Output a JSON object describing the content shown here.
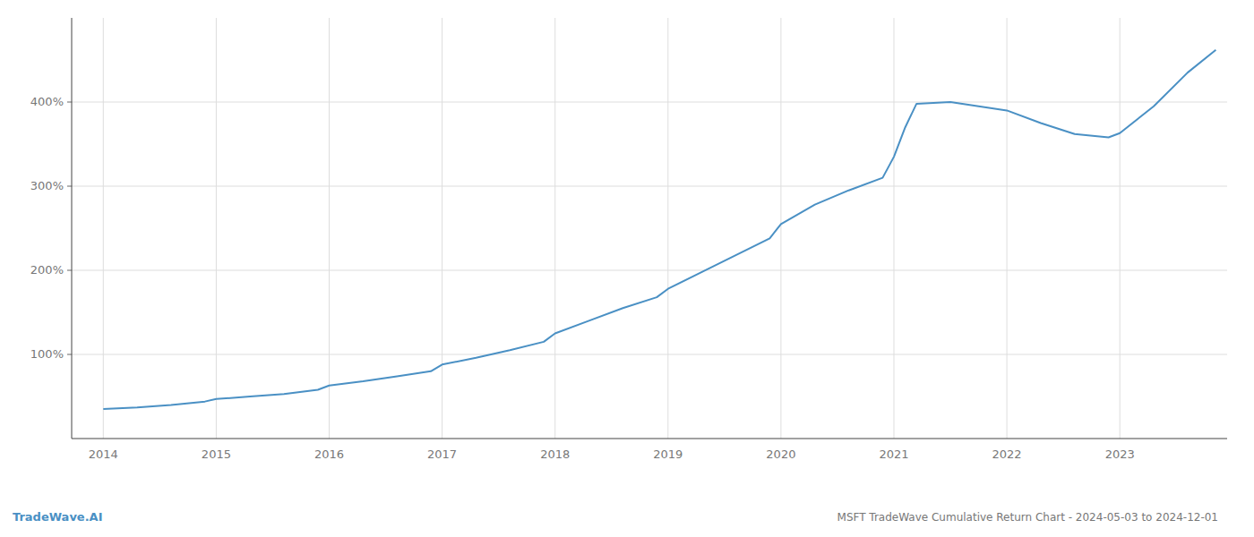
{
  "chart_data": {
    "type": "line",
    "title": "MSFT TradeWave Cumulative Return Chart - 2024-05-03 to 2024-12-01",
    "annotations": [
      "TradeWave.AI"
    ],
    "x": [
      2014.0,
      2014.3,
      2014.6,
      2014.9,
      2015.0,
      2015.3,
      2015.6,
      2015.9,
      2016.0,
      2016.3,
      2016.6,
      2016.9,
      2017.0,
      2017.3,
      2017.6,
      2017.9,
      2018.0,
      2018.3,
      2018.6,
      2018.9,
      2019.0,
      2019.3,
      2019.6,
      2019.9,
      2020.0,
      2020.3,
      2020.6,
      2020.9,
      2021.0,
      2021.1,
      2021.2,
      2021.5,
      2022.0,
      2022.3,
      2022.6,
      2022.9,
      2023.0,
      2023.3,
      2023.6,
      2023.85
    ],
    "values": [
      35,
      37,
      40,
      44,
      47,
      50,
      53,
      58,
      63,
      68,
      74,
      80,
      88,
      96,
      105,
      115,
      125,
      140,
      155,
      168,
      178,
      198,
      218,
      238,
      255,
      278,
      295,
      310,
      335,
      370,
      398,
      400,
      390,
      375,
      362,
      358,
      363,
      395,
      435,
      462
    ],
    "color": "#4a90c4",
    "xlim": [
      2013.72,
      2023.95
    ],
    "xticks": [
      2014,
      2015,
      2016,
      2017,
      2018,
      2019,
      2020,
      2021,
      2022,
      2023
    ],
    "ylim": [
      0,
      500
    ],
    "yticks": [
      {
        "value": 100,
        "label": "100%"
      },
      {
        "value": 200,
        "label": "200%"
      },
      {
        "value": 300,
        "label": "300%"
      },
      {
        "value": 400,
        "label": "400%"
      }
    ],
    "grid": true
  }
}
